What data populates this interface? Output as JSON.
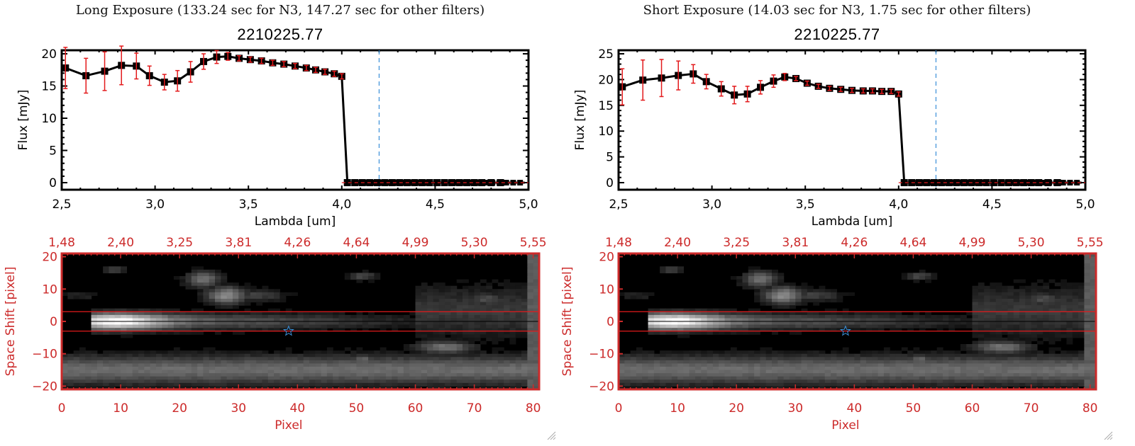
{
  "panels": [
    {
      "exposure_title": "Long Exposure (133.24 sec for N3, 147.27 sec for other filters)",
      "object_title": "2210225.77"
    },
    {
      "exposure_title": "Short Exposure (14.03 sec for N3, 1.75 sec for other filters)",
      "object_title": "2210225.77"
    }
  ],
  "chart_data": [
    {
      "type": "line",
      "panel": "long-exposure-spectrum",
      "title": "2210225.77",
      "xlabel": "Lambda [um]",
      "ylabel": "Flux [mJy]",
      "xlim": [
        2.5,
        5.0
      ],
      "ylim": [
        -0.5,
        20.5
      ],
      "xticks": [
        "2.5",
        "3.0",
        "3.5",
        "4.0",
        "4.5",
        "5.0"
      ],
      "yticks": [
        "0",
        "5",
        "10",
        "15",
        "20"
      ],
      "marker_line_x": 4.2,
      "zero_line": 0,
      "series": [
        {
          "name": "flux",
          "x": [
            2.52,
            2.63,
            2.73,
            2.82,
            2.9,
            2.97,
            3.05,
            3.12,
            3.19,
            3.26,
            3.33,
            3.39,
            3.45,
            3.51,
            3.57,
            3.63,
            3.69,
            3.75,
            3.81,
            3.86,
            3.91,
            3.96,
            4.0,
            4.03,
            4.07,
            4.11,
            4.15,
            4.19,
            4.23,
            4.27,
            4.31,
            4.35,
            4.39,
            4.43,
            4.47,
            4.51,
            4.55,
            4.59,
            4.63,
            4.67,
            4.71,
            4.75,
            4.8,
            4.85
          ],
          "y": [
            17.8,
            16.6,
            17.3,
            18.2,
            18.1,
            16.6,
            15.6,
            15.8,
            17.2,
            18.8,
            19.5,
            19.6,
            19.3,
            19.1,
            18.9,
            18.6,
            18.4,
            18.1,
            17.8,
            17.5,
            17.2,
            16.9,
            16.5,
            0,
            0,
            0,
            0,
            0,
            0,
            0,
            0,
            0,
            0,
            0,
            0,
            0,
            0,
            0,
            0,
            0,
            0,
            0,
            0,
            0
          ],
          "yerr": [
            3.2,
            2.7,
            3.0,
            3.0,
            2.0,
            1.5,
            1.2,
            1.6,
            1.6,
            1.2,
            1.0,
            0.6,
            0.4,
            0.4,
            0.4,
            0.4,
            0.4,
            0.4,
            0.4,
            0.4,
            0.4,
            0.4,
            0.4,
            0,
            0,
            0,
            0,
            0,
            0,
            0,
            0,
            0,
            0,
            0,
            0,
            0,
            0,
            0,
            0,
            0,
            0,
            0,
            0,
            0
          ]
        }
      ]
    },
    {
      "type": "heatmap",
      "panel": "long-exposure-spectral-image",
      "xlabel": "Pixel",
      "ylabel": "Space Shift [pixel]",
      "xlim": [
        0,
        81
      ],
      "ylim": [
        -21,
        21
      ],
      "xticks": [
        "0",
        "10",
        "20",
        "30",
        "40",
        "50",
        "60",
        "70",
        "80"
      ],
      "yticks": [
        "-20",
        "-10",
        "0",
        "10",
        "20"
      ],
      "top_xticks": [
        "1.48",
        "2.40",
        "3.25",
        "3.81",
        "4.26",
        "4.64",
        "4.99",
        "5.30",
        "5.55"
      ],
      "aperture_lines": [
        -3,
        3
      ],
      "center_line": 0,
      "star_marker": {
        "x": 38.5,
        "y": -3
      }
    },
    {
      "type": "line",
      "panel": "short-exposure-spectrum",
      "title": "2210225.77",
      "xlabel": "Lambda [um]",
      "ylabel": "Flux [mJy]",
      "xlim": [
        2.5,
        5.0
      ],
      "ylim": [
        -0.5,
        25.5
      ],
      "xticks": [
        "2.5",
        "3.0",
        "3.5",
        "4.0",
        "4.5",
        "5.0"
      ],
      "yticks": [
        "0",
        "5",
        "10",
        "15",
        "20",
        "25"
      ],
      "marker_line_x": 4.2,
      "zero_line": 0,
      "series": [
        {
          "name": "flux",
          "x": [
            2.52,
            2.63,
            2.73,
            2.82,
            2.9,
            2.97,
            3.05,
            3.12,
            3.19,
            3.26,
            3.33,
            3.39,
            3.45,
            3.51,
            3.57,
            3.63,
            3.69,
            3.75,
            3.81,
            3.86,
            3.91,
            3.96,
            4.0,
            4.03,
            4.07,
            4.11,
            4.15,
            4.19,
            4.23,
            4.27,
            4.31,
            4.35,
            4.39,
            4.43,
            4.47,
            4.51,
            4.55,
            4.59,
            4.63,
            4.67,
            4.71,
            4.75,
            4.8,
            4.85
          ],
          "y": [
            18.6,
            19.9,
            20.3,
            20.8,
            21.1,
            19.6,
            18.2,
            17.0,
            17.2,
            18.5,
            19.7,
            20.5,
            20.2,
            19.3,
            18.7,
            18.3,
            18.1,
            17.9,
            17.8,
            17.8,
            17.7,
            17.7,
            17.2,
            0,
            0,
            0,
            0,
            0,
            0,
            0,
            0,
            0,
            0,
            0,
            0,
            0,
            0,
            0,
            0,
            0,
            0,
            0,
            0,
            0
          ],
          "yerr": [
            3.5,
            3.9,
            3.6,
            2.8,
            1.8,
            1.4,
            1.4,
            1.7,
            1.5,
            1.3,
            1.2,
            0.7,
            0.4,
            0.4,
            0.4,
            0.4,
            0.4,
            0.4,
            0.4,
            0.4,
            0.4,
            0.4,
            0.4,
            0,
            0,
            0,
            0,
            0,
            0,
            0,
            0,
            0,
            0,
            0,
            0,
            0,
            0,
            0,
            0,
            0,
            0,
            0,
            0,
            0
          ]
        }
      ]
    },
    {
      "type": "heatmap",
      "panel": "short-exposure-spectral-image",
      "xlabel": "Pixel",
      "ylabel": "Space Shift [pixel]",
      "xlim": [
        0,
        81
      ],
      "ylim": [
        -21,
        21
      ],
      "xticks": [
        "0",
        "10",
        "20",
        "30",
        "40",
        "50",
        "60",
        "70",
        "80"
      ],
      "yticks": [
        "-20",
        "-10",
        "0",
        "10",
        "20"
      ],
      "top_xticks": [
        "1.48",
        "2.40",
        "3.25",
        "3.81",
        "4.26",
        "4.64",
        "4.99",
        "5.30",
        "5.55"
      ],
      "aperture_lines": [
        -3,
        3
      ],
      "center_line": 0,
      "star_marker": {
        "x": 38.5,
        "y": -3
      }
    }
  ],
  "colors": {
    "axis_black": "#000000",
    "errorbar_red": "#e31a1c",
    "image_axis_red": "#cc2a2a",
    "marker_line_blue": "#3a8fd8",
    "star_blue": "#3a8fd8"
  }
}
